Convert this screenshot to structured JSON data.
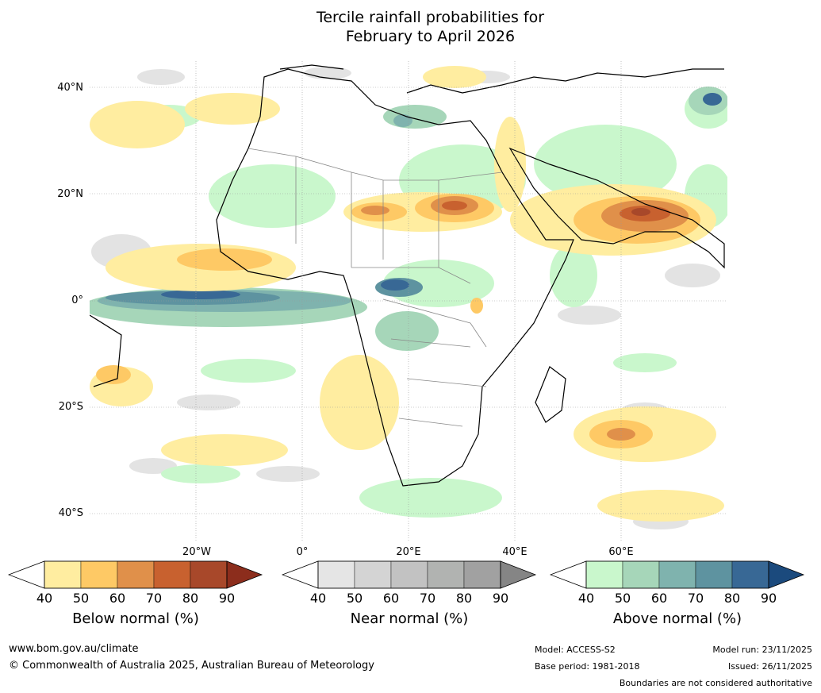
{
  "title_line1": "Tercile rainfall probabilities for",
  "title_line2": "February to April 2026",
  "lat_labels": [
    "40°N",
    "20°N",
    "0°",
    "20°S",
    "40°S"
  ],
  "lon_labels": [
    "20°W",
    "0°",
    "20°E",
    "40°E",
    "60°E"
  ],
  "colorbars": [
    {
      "title": "Below normal (%)",
      "ticks": [
        "40",
        "50",
        "60",
        "70",
        "80",
        "90"
      ],
      "colors": [
        "#ffeda0",
        "#fec965",
        "#e0904a",
        "#c8612f",
        "#a8482a",
        "#8c2d1c"
      ]
    },
    {
      "title": "Near normal (%)",
      "ticks": [
        "40",
        "50",
        "60",
        "70",
        "80",
        "90"
      ],
      "colors": [
        "#e5e5e5",
        "#d4d4d4",
        "#c2c2c2",
        "#b1b3b1",
        "#a1a1a1",
        "#858585"
      ]
    },
    {
      "title": "Above normal (%)",
      "ticks": [
        "40",
        "50",
        "60",
        "70",
        "80",
        "90"
      ],
      "colors": [
        "#c9f7cc",
        "#a6d6b9",
        "#7fb3ae",
        "#5e93a0",
        "#386895",
        "#1b4a7d"
      ]
    }
  ],
  "footer": {
    "website": "www.bom.gov.au/climate",
    "copyright": "© Commonwealth of Australia 2025, Australian Bureau of Meteorology",
    "model": "Model: ACCESS-S2",
    "base_period": "Base period: 1981-2018",
    "model_run": "Model run: 23/11/2025",
    "issued": "Issued: 26/11/2025",
    "disclaimer": "Boundaries are not considered authoritative"
  }
}
